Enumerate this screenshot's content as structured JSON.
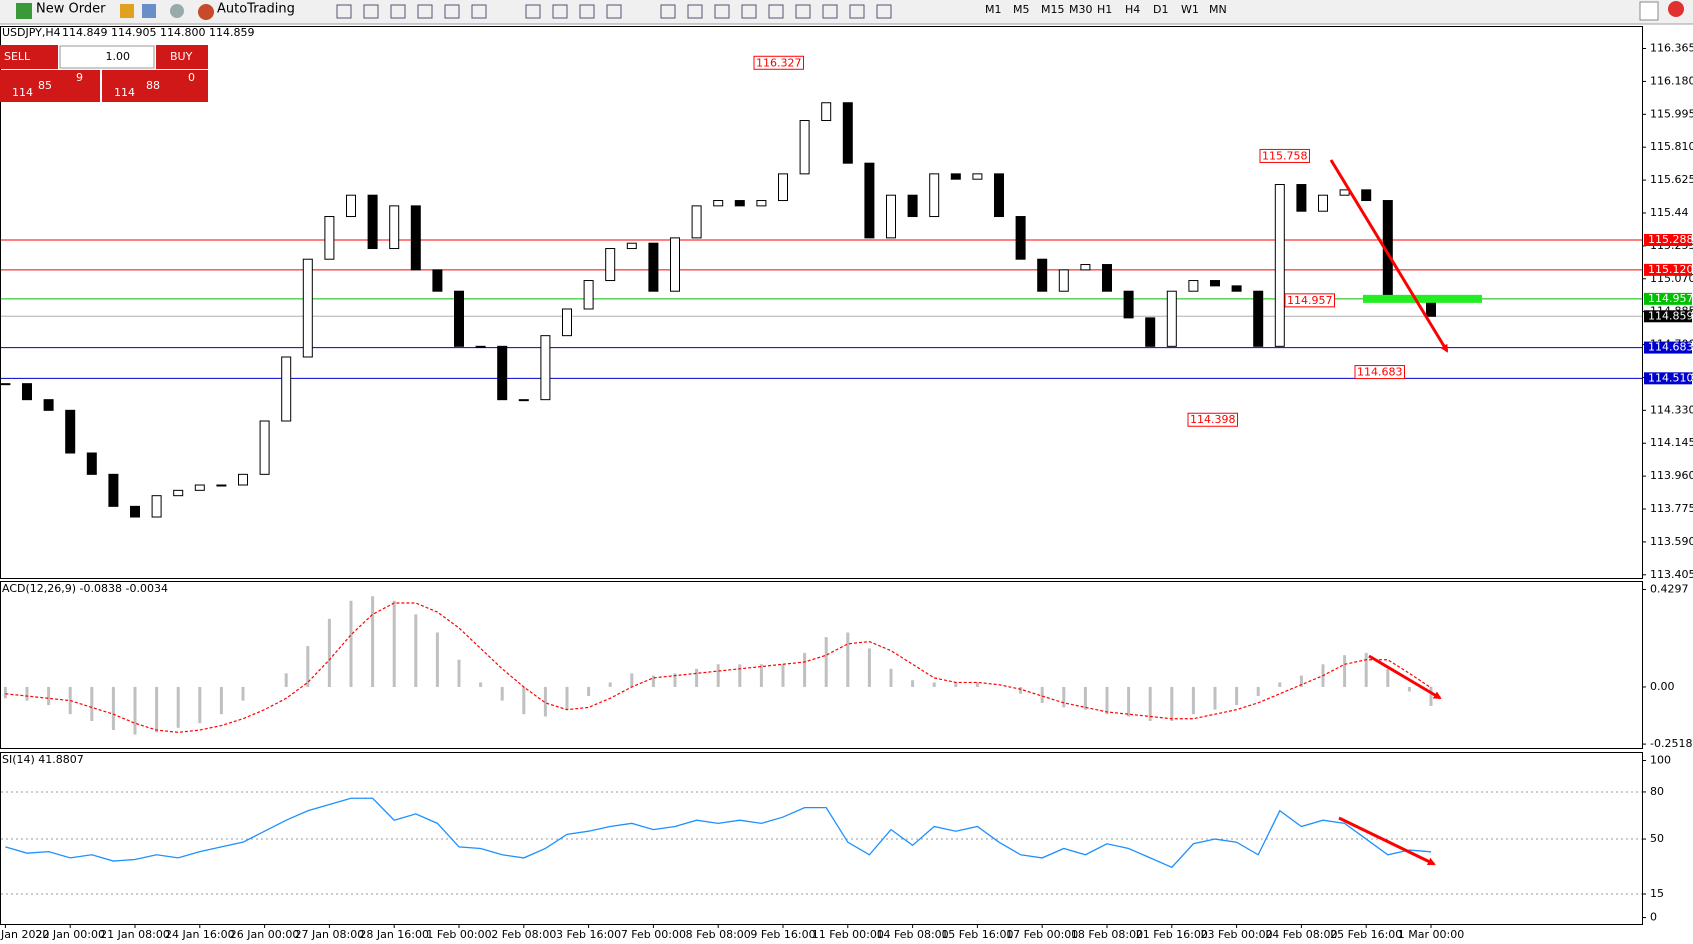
{
  "toolbar": {
    "new_order": "New Order",
    "auto_trading": "AutoTrading",
    "timeframes": [
      "M1",
      "M5",
      "M15",
      "M30",
      "H1",
      "H4",
      "D1",
      "W1",
      "MN"
    ]
  },
  "trade_panel": {
    "sell": "SELL",
    "buy": "BUY",
    "lot": "1.00",
    "bid_big": "114",
    "bid_main": "85",
    "bid_small": "9",
    "ask_big": "114",
    "ask_main": "88",
    "ask_small": "0"
  },
  "chart_data": [
    {
      "type": "candlestick",
      "title": "USDJPY,H4",
      "ohlc_text": "114.849 114.905 114.800 114.859",
      "categories": [
        "Jan 2022",
        null,
        null,
        "20 Jan 00:00",
        null,
        null,
        "21 Jan 08:00",
        null,
        null,
        "24 Jan 16:00",
        null,
        null,
        "26 Jan 00:00",
        null,
        null,
        "27 Jan 08:00",
        null,
        null,
        "28 Jan 16:00",
        null,
        null,
        "1 Feb 00:00",
        null,
        null,
        "2 Feb 08:00",
        null,
        null,
        "3 Feb 16:00",
        null,
        null,
        "7 Feb 00:00",
        null,
        null,
        "8 Feb 08:00",
        null,
        null,
        "9 Feb 16:00",
        null,
        null,
        "11 Feb 00:00",
        null,
        null,
        "14 Feb 08:00",
        null,
        null,
        "15 Feb 16:00",
        null,
        null,
        "17 Feb 00:00",
        null,
        null,
        "18 Feb 08:00",
        null,
        null,
        "21 Feb 16:00",
        null,
        null,
        "23 Feb 00:00",
        null,
        null,
        "24 Feb 08:00",
        null,
        null,
        "25 Feb 16:00",
        null,
        null,
        "1 Mar 00:00"
      ],
      "values": [
        114.48,
        114.39,
        114.33,
        114.09,
        113.97,
        113.79,
        113.73,
        113.85,
        113.88,
        113.91,
        113.91,
        113.97,
        114.27,
        114.63,
        115.18,
        115.42,
        115.54,
        115.24,
        115.48,
        115.12,
        115.0,
        114.69,
        114.69,
        114.39,
        114.39,
        114.75,
        114.9,
        115.06,
        115.24,
        115.27,
        115.0,
        115.3,
        115.48,
        115.51,
        115.48,
        115.51,
        115.66,
        115.96,
        116.06,
        115.72,
        115.3,
        115.54,
        115.42,
        115.66,
        115.63,
        115.66,
        115.42,
        115.18,
        115.0,
        115.12,
        115.15,
        115.0,
        114.85,
        114.69,
        115.0,
        115.06,
        115.03,
        115.0,
        114.69,
        115.6,
        115.45,
        115.54,
        115.57,
        115.51,
        114.97,
        114.94,
        114.859
      ],
      "ylim": [
        113.387,
        116.486
      ],
      "yticks": [
        116.365,
        {
          "value": 116.18,
          "label": "116.180"
        },
        115.995,
        {
          "value": 115.81,
          "label": "115.810"
        },
        115.625,
        115.44,
        115.255,
        {
          "value": 115.07,
          "label": "115.070"
        },
        114.885,
        {
          "value": 114.7,
          "label": "114.700"
        },
        114.515,
        {
          "value": 114.33,
          "label": "114.330"
        },
        114.145,
        {
          "value": 113.96,
          "label": "113.960"
        },
        113.775,
        {
          "value": 113.59,
          "label": "113.590"
        },
        113.405
      ],
      "levels": [
        {
          "value": 115.288,
          "color": "#ff0000"
        },
        {
          "value": 115.12,
          "label": "115.120",
          "color": "#ff0000"
        },
        {
          "value": 114.957,
          "color": "#00c000"
        },
        {
          "value": 114.859,
          "color": "#000000"
        },
        {
          "value": 114.683,
          "color": "#0000cc"
        },
        {
          "value": 114.51,
          "label": "114.510",
          "color": "#0000cc"
        }
      ],
      "annotations": [
        116.327,
        115.758,
        114.957,
        114.683,
        114.398
      ]
    },
    {
      "type": "macd",
      "title": "ACD(12,26,9) -0.0838 -0.0034",
      "series": [
        {
          "color": "#c0c0c0",
          "values": [
            -0.05,
            -0.06,
            -0.08,
            -0.12,
            -0.15,
            -0.19,
            -0.21,
            -0.2,
            -0.18,
            -0.16,
            -0.12,
            -0.06,
            0.0,
            0.06,
            0.18,
            0.3,
            0.38,
            0.4,
            0.38,
            0.32,
            0.24,
            0.12,
            0.02,
            -0.06,
            -0.12,
            -0.13,
            -0.1,
            -0.04,
            0.02,
            0.06,
            0.05,
            0.06,
            0.08,
            0.1,
            0.1,
            0.1,
            0.1,
            0.15,
            0.22,
            0.24,
            0.17,
            0.08,
            0.03,
            0.02,
            0.02,
            0.02,
            0.0,
            -0.03,
            -0.07,
            -0.09,
            -0.1,
            -0.12,
            -0.13,
            -0.15,
            -0.15,
            -0.12,
            -0.1,
            -0.08,
            -0.04,
            0.02,
            0.05,
            0.1,
            0.14,
            0.15,
            0.08,
            -0.02,
            -0.0838
          ]
        },
        {
          "color": "#ff0000",
          "values": [
            -0.03,
            -0.04,
            -0.05,
            -0.06,
            -0.09,
            -0.12,
            -0.16,
            -0.19,
            -0.2,
            -0.19,
            -0.17,
            -0.14,
            -0.1,
            -0.05,
            0.02,
            0.12,
            0.23,
            0.32,
            0.37,
            0.37,
            0.33,
            0.26,
            0.17,
            0.08,
            0.0,
            -0.07,
            -0.1,
            -0.09,
            -0.05,
            0.0,
            0.04,
            0.05,
            0.06,
            0.07,
            0.08,
            0.09,
            0.1,
            0.11,
            0.14,
            0.19,
            0.2,
            0.16,
            0.1,
            0.04,
            0.02,
            0.02,
            0.01,
            -0.01,
            -0.04,
            -0.07,
            -0.09,
            -0.11,
            -0.12,
            -0.13,
            -0.14,
            -0.14,
            -0.12,
            -0.1,
            -0.07,
            -0.03,
            0.01,
            0.05,
            0.1,
            0.12,
            0.12,
            0.06,
            -0.0034
          ]
        }
      ],
      "ylim": [
        -0.269,
        0.4626
      ],
      "yticks": [
        0.4297,
        {
          "value": 0,
          "label": "0.00"
        },
        -0.2518
      ]
    },
    {
      "type": "line",
      "title": "SI(14) 41.8807",
      "series": [
        {
          "color": "#1e90ff",
          "values": [
            45,
            41,
            42,
            38,
            40,
            36,
            37,
            40,
            38,
            42,
            45,
            48,
            55,
            62,
            68,
            72,
            76,
            76,
            62,
            66,
            60,
            45,
            44,
            40,
            38,
            44,
            53,
            55,
            58,
            60,
            56,
            58,
            62,
            60,
            62,
            60,
            64,
            70,
            70,
            48,
            40,
            56,
            46,
            58,
            55,
            58,
            48,
            40,
            38,
            44,
            40,
            47,
            44,
            38,
            32,
            47,
            50,
            48,
            40,
            68,
            58,
            62,
            60,
            50,
            40,
            43,
            41.8807
          ]
        }
      ],
      "ylim": [
        -4.1,
        104.8
      ],
      "yticks": [
        100,
        80,
        50,
        15,
        0
      ],
      "levels": [
        80,
        50,
        15
      ]
    }
  ]
}
